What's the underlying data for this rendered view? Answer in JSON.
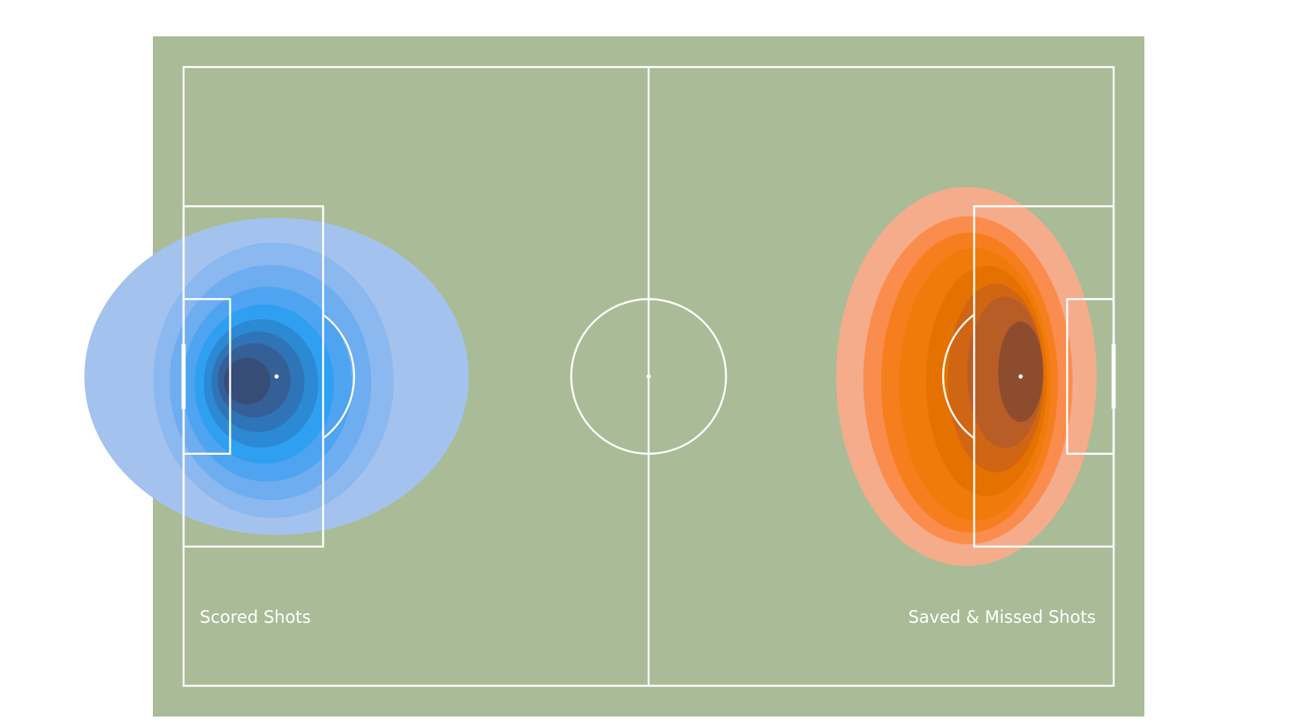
{
  "chart_data": {
    "type": "heatmap",
    "title": "",
    "pitch": {
      "length": 120,
      "width": 80,
      "background": "#aabb97",
      "line_color": "#ffffff"
    },
    "annotations": {
      "scored": "Scored Shots",
      "missed": "Saved & Missed Shots"
    },
    "series": [
      {
        "name": "Scored Shots",
        "colormap": [
          "#a3c3ee",
          "#8ab8ef",
          "#6eadef",
          "#4ea4f0",
          "#2f9ff2",
          "#2c89d4",
          "#2f74b6",
          "#345f97",
          "#374c77"
        ],
        "levels": [
          {
            "cx": 12.0,
            "cy": 40.0,
            "rx": 24.8,
            "ry": 20.5
          },
          {
            "cx": 11.6,
            "cy": 40.5,
            "rx": 15.5,
            "ry": 17.8
          },
          {
            "cx": 11.2,
            "cy": 40.8,
            "rx": 13.0,
            "ry": 15.2
          },
          {
            "cx": 10.8,
            "cy": 41.0,
            "rx": 10.9,
            "ry": 12.6
          },
          {
            "cx": 10.4,
            "cy": 41.0,
            "rx": 9.0,
            "ry": 10.3
          },
          {
            "cx": 10.0,
            "cy": 40.9,
            "rx": 7.4,
            "ry": 8.3
          },
          {
            "cx": 9.6,
            "cy": 40.7,
            "rx": 6.0,
            "ry": 6.5
          },
          {
            "cx": 9.1,
            "cy": 40.5,
            "rx": 4.7,
            "ry": 4.8
          },
          {
            "cx": 8.2,
            "cy": 40.6,
            "rx": 3.0,
            "ry": 3.0
          }
        ]
      },
      {
        "name": "Saved & Missed Shots",
        "colormap": [
          "#f5ac8b",
          "#fa8d4d",
          "#f67e1d",
          "#f07a0a",
          "#e57100",
          "#d06514",
          "#b85d26",
          "#8e4c2f"
        ],
        "levels": [
          {
            "cx": 101.0,
            "cy": 40.0,
            "rx": 16.8,
            "ry": 24.5
          },
          {
            "cx": 101.2,
            "cy": 40.5,
            "rx": 13.5,
            "ry": 21.2
          },
          {
            "cx": 101.4,
            "cy": 40.8,
            "rx": 11.4,
            "ry": 19.4
          },
          {
            "cx": 102.1,
            "cy": 41.0,
            "rx": 9.8,
            "ry": 17.6
          },
          {
            "cx": 103.6,
            "cy": 40.6,
            "rx": 7.8,
            "ry": 14.9
          },
          {
            "cx": 104.8,
            "cy": 40.2,
            "rx": 6.2,
            "ry": 12.2
          },
          {
            "cx": 106.0,
            "cy": 39.5,
            "rx": 4.9,
            "ry": 9.8
          },
          {
            "cx": 108.0,
            "cy": 39.4,
            "rx": 2.9,
            "ry": 6.5
          }
        ]
      }
    ],
    "grid": false,
    "legend": "none"
  }
}
